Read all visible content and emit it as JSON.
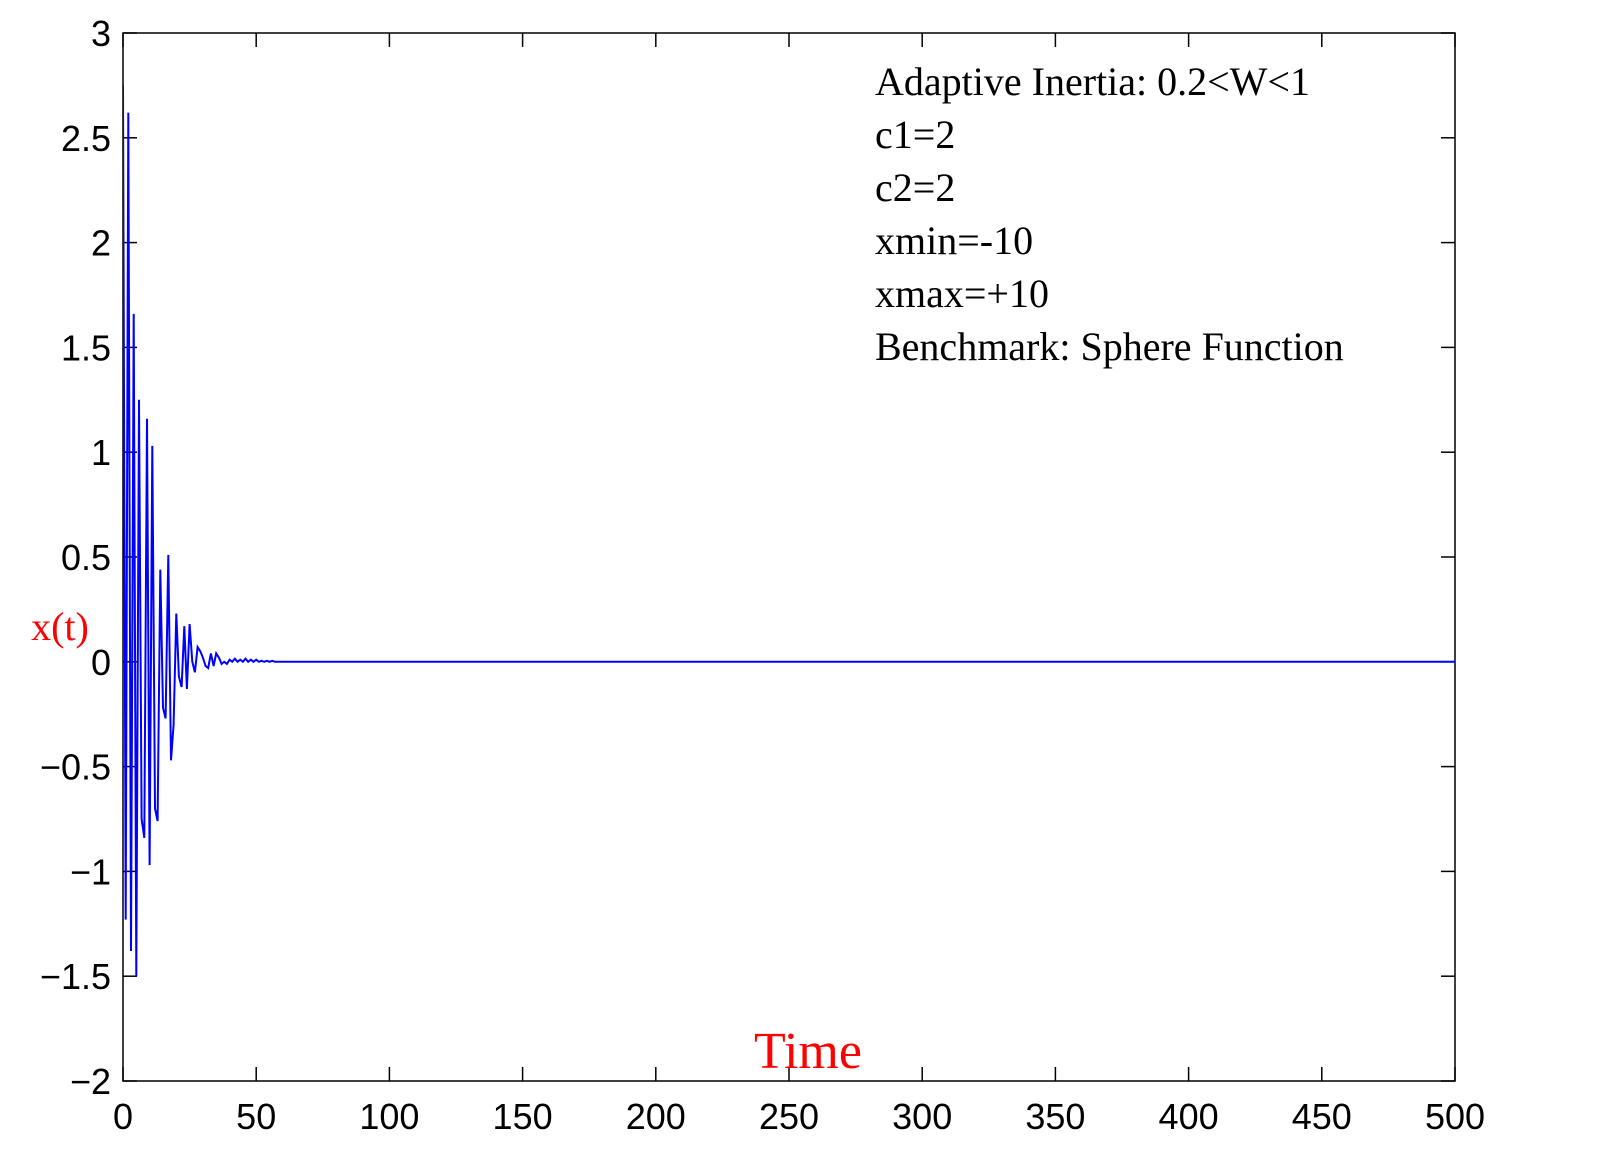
{
  "chart_data": {
    "type": "line",
    "xlabel": "Time",
    "ylabel": "x(t)",
    "xlim": [
      0,
      500
    ],
    "ylim": [
      -2,
      3
    ],
    "xticks": [
      0,
      50,
      100,
      150,
      200,
      250,
      300,
      350,
      400,
      450,
      500
    ],
    "yticks": [
      3,
      2.5,
      2,
      1.5,
      1,
      0.5,
      0,
      -0.5,
      -1,
      -1.5,
      -2
    ],
    "xtick_labels": [
      "0",
      "50",
      "100",
      "150",
      "200",
      "250",
      "300",
      "350",
      "400",
      "450",
      "500"
    ],
    "ytick_labels": [
      "3",
      "2.5",
      "2",
      "1.5",
      "1",
      "0.5",
      "0",
      "−0.5",
      "−1",
      "−1.5",
      "−2"
    ],
    "grid": false,
    "annotations": [
      "Adaptive Inertia: 0.2<W<1",
      "c1=2",
      "c2=2",
      "xmin=-10",
      "xmax=+10",
      "Benchmark: Sphere Function"
    ],
    "series": [
      {
        "color": "#0000ff",
        "x": [
          0,
          1,
          2,
          3,
          4,
          5,
          6,
          7,
          8,
          9,
          10,
          11,
          12,
          13,
          14,
          15,
          16,
          17,
          18,
          19,
          20,
          21,
          22,
          23,
          24,
          25,
          26,
          27,
          28,
          29,
          30,
          31,
          32,
          33,
          34,
          35,
          36,
          37,
          38,
          39,
          40,
          41,
          42,
          43,
          44,
          45,
          46,
          47,
          48,
          49,
          50,
          51,
          52,
          53,
          54,
          55,
          56,
          57,
          58,
          59,
          60,
          61,
          62,
          500
        ],
        "y": [
          2.75,
          -1.23,
          2.62,
          -1.38,
          1.66,
          -1.5,
          1.25,
          -0.75,
          -0.84,
          1.16,
          -0.97,
          1.03,
          -0.7,
          -0.76,
          0.44,
          -0.22,
          -0.27,
          0.51,
          -0.47,
          -0.3,
          0.23,
          -0.07,
          -0.12,
          0.17,
          -0.13,
          0.18,
          0.0,
          -0.05,
          0.07,
          0.05,
          0.02,
          -0.02,
          -0.03,
          0.04,
          -0.02,
          0.04,
          0.02,
          -0.01,
          0.0,
          -0.01,
          0.01,
          0.0,
          0.015,
          0.0,
          0.01,
          0.0,
          0.015,
          0.0,
          0.01,
          0.0,
          0.01,
          0.0,
          0.005,
          0.0,
          0.005,
          0.0,
          0.005,
          0.0,
          0.0,
          0.0,
          0.0,
          0.0,
          0.0,
          0.0
        ]
      }
    ]
  },
  "colors": {
    "line": "#0000ff",
    "axis": "#000000",
    "label": "#ff0000"
  }
}
